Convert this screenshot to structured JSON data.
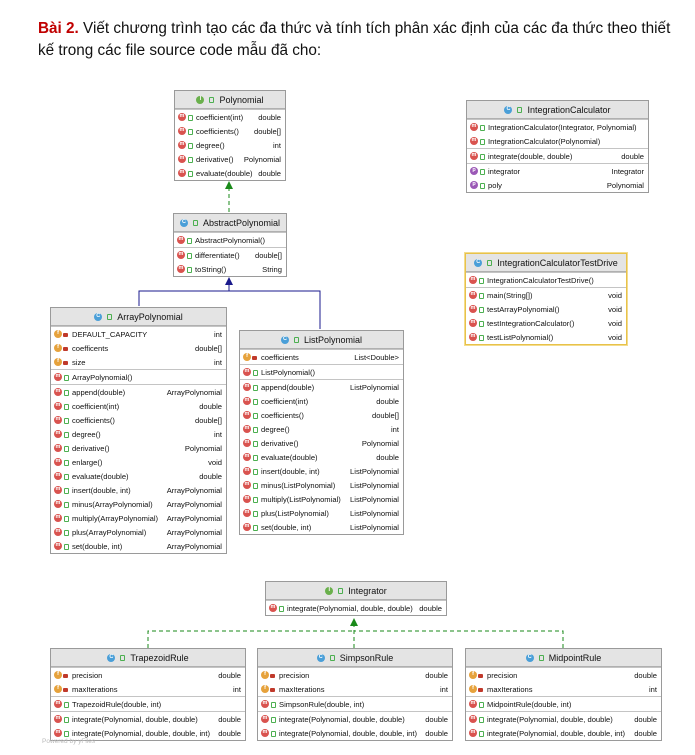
{
  "heading": {
    "label": "Bài 2.",
    "text": " Viết chương trình tạo các đa thức và tính tích phân xác định của các đa thức theo thiết kế trong các file source code mẫu đã cho:"
  },
  "footer": "Powered by yFiles",
  "classes": {
    "polynomial": {
      "name": "Polynomial",
      "kind": "i",
      "sections": [
        [
          {
            "k": "m",
            "n": "coefficient(int)",
            "t": "double"
          },
          {
            "k": "m",
            "n": "coefficients()",
            "t": "double[]"
          },
          {
            "k": "m",
            "n": "degree()",
            "t": "int"
          },
          {
            "k": "m",
            "n": "derivative()",
            "t": "Polynomial"
          },
          {
            "k": "m",
            "n": "evaluate(double)",
            "t": "double"
          }
        ]
      ]
    },
    "abstract": {
      "name": "AbstractPolynomial",
      "kind": "c",
      "sections": [
        [
          {
            "k": "m",
            "n": "AbstractPolynomial()",
            "t": ""
          }
        ],
        [
          {
            "k": "m",
            "n": "differentiate()",
            "t": "double[]"
          },
          {
            "k": "m",
            "n": "toString()",
            "t": "String"
          }
        ]
      ]
    },
    "array": {
      "name": "ArrayPolynomial",
      "kind": "c",
      "sections": [
        [
          {
            "k": "f",
            "v": "priv",
            "n": "DEFAULT_CAPACITY",
            "t": "int"
          },
          {
            "k": "f",
            "v": "priv",
            "n": "coefficents",
            "t": "double[]"
          },
          {
            "k": "f",
            "v": "priv",
            "n": "size",
            "t": "int"
          }
        ],
        [
          {
            "k": "m",
            "n": "ArrayPolynomial()",
            "t": ""
          }
        ],
        [
          {
            "k": "m",
            "n": "append(double)",
            "t": "ArrayPolynomial"
          },
          {
            "k": "m",
            "n": "coefficient(int)",
            "t": "double"
          },
          {
            "k": "m",
            "n": "coefficients()",
            "t": "double[]"
          },
          {
            "k": "m",
            "n": "degree()",
            "t": "int"
          },
          {
            "k": "m",
            "n": "derivative()",
            "t": "Polynomial"
          },
          {
            "k": "m",
            "n": "enlarge()",
            "t": "void"
          },
          {
            "k": "m",
            "n": "evaluate(double)",
            "t": "double"
          },
          {
            "k": "m",
            "n": "insert(double, int)",
            "t": "ArrayPolynomial"
          },
          {
            "k": "m",
            "n": "minus(ArrayPolynomial)",
            "t": "ArrayPolynomial"
          },
          {
            "k": "m",
            "n": "multiply(ArrayPolynomial)",
            "t": "ArrayPolynomial"
          },
          {
            "k": "m",
            "n": "plus(ArrayPolynomial)",
            "t": "ArrayPolynomial"
          },
          {
            "k": "m",
            "n": "set(double, int)",
            "t": "ArrayPolynomial"
          }
        ]
      ]
    },
    "list": {
      "name": "ListPolynomial",
      "kind": "c",
      "sections": [
        [
          {
            "k": "f",
            "v": "priv",
            "n": "coefficients",
            "t": "List<Double>"
          }
        ],
        [
          {
            "k": "m",
            "n": "ListPolynomial()",
            "t": ""
          }
        ],
        [
          {
            "k": "m",
            "n": "append(double)",
            "t": "ListPolynomial"
          },
          {
            "k": "m",
            "n": "coefficient(int)",
            "t": "double"
          },
          {
            "k": "m",
            "n": "coefficients()",
            "t": "double[]"
          },
          {
            "k": "m",
            "n": "degree()",
            "t": "int"
          },
          {
            "k": "m",
            "n": "derivative()",
            "t": "Polynomial"
          },
          {
            "k": "m",
            "n": "evaluate(double)",
            "t": "double"
          },
          {
            "k": "m",
            "n": "insert(double, int)",
            "t": "ListPolynomial"
          },
          {
            "k": "m",
            "n": "minus(ListPolynomial)",
            "t": "ListPolynomial"
          },
          {
            "k": "m",
            "n": "multiply(ListPolynomial)",
            "t": "ListPolynomial"
          },
          {
            "k": "m",
            "n": "plus(ListPolynomial)",
            "t": "ListPolynomial"
          },
          {
            "k": "m",
            "n": "set(double, int)",
            "t": "ListPolynomial"
          }
        ]
      ]
    },
    "calc": {
      "name": "IntegrationCalculator",
      "kind": "c",
      "sections": [
        [
          {
            "k": "m",
            "n": "IntegrationCalculator(Integrator, Polynomial)",
            "t": ""
          },
          {
            "k": "m",
            "n": "IntegrationCalculator(Polynomial)",
            "t": ""
          }
        ],
        [
          {
            "k": "m",
            "n": "integrate(double, double)",
            "t": "double"
          }
        ],
        [
          {
            "k": "p",
            "n": "integrator",
            "t": "Integrator"
          },
          {
            "k": "p",
            "n": "poly",
            "t": "Polynomial"
          }
        ]
      ]
    },
    "testdrive": {
      "name": "IntegrationCalculatorTestDrive",
      "kind": "c",
      "sections": [
        [
          {
            "k": "m",
            "n": "IntegrationCalculatorTestDrive()",
            "t": ""
          }
        ],
        [
          {
            "k": "m",
            "n": "main(String[])",
            "t": "void"
          },
          {
            "k": "m",
            "n": "testArrayPolynomial()",
            "t": "void"
          },
          {
            "k": "m",
            "n": "testIntegrationCalculator()",
            "t": "void"
          },
          {
            "k": "m",
            "n": "testListPolynomial()",
            "t": "void"
          }
        ]
      ]
    },
    "integrator": {
      "name": "Integrator",
      "kind": "i",
      "sections": [
        [
          {
            "k": "m",
            "n": "integrate(Polynomial, double, double)",
            "t": "double"
          }
        ]
      ]
    },
    "trapezoid": {
      "name": "TrapezoidRule",
      "kind": "c",
      "sections": [
        [
          {
            "k": "f",
            "v": "priv",
            "n": "precision",
            "t": "double"
          },
          {
            "k": "f",
            "v": "priv",
            "n": "maxIterations",
            "t": "int"
          }
        ],
        [
          {
            "k": "m",
            "n": "TrapezoidRule(double, int)",
            "t": ""
          }
        ],
        [
          {
            "k": "m",
            "n": "integrate(Polynomial, double, double)",
            "t": "double"
          },
          {
            "k": "m",
            "n": "integrate(Polynomial, double, double, int)",
            "t": "double"
          }
        ]
      ]
    },
    "simpson": {
      "name": "SimpsonRule",
      "kind": "c",
      "sections": [
        [
          {
            "k": "f",
            "v": "priv",
            "n": "precision",
            "t": "double"
          },
          {
            "k": "f",
            "v": "priv",
            "n": "maxIterations",
            "t": "int"
          }
        ],
        [
          {
            "k": "m",
            "n": "SimpsonRule(double, int)",
            "t": ""
          }
        ],
        [
          {
            "k": "m",
            "n": "integrate(Polynomial, double, double)",
            "t": "double"
          },
          {
            "k": "m",
            "n": "integrate(Polynomial, double, double, int)",
            "t": "double"
          }
        ]
      ]
    },
    "midpoint": {
      "name": "MidpointRule",
      "kind": "c",
      "sections": [
        [
          {
            "k": "f",
            "v": "priv",
            "n": "precision",
            "t": "double"
          },
          {
            "k": "f",
            "v": "priv",
            "n": "maxIterations",
            "t": "int"
          }
        ],
        [
          {
            "k": "m",
            "n": "MidpointRule(double, int)",
            "t": ""
          }
        ],
        [
          {
            "k": "m",
            "n": "integrate(Polynomial, double, double)",
            "t": "double"
          },
          {
            "k": "m",
            "n": "integrate(Polynomial, double, double, int)",
            "t": "double"
          }
        ]
      ]
    }
  },
  "colors": {
    "realization": "#1a8a1a",
    "inheritance": "#1a1a8c",
    "header": "#e4e4e4",
    "selected_border": "#e8c24a"
  }
}
